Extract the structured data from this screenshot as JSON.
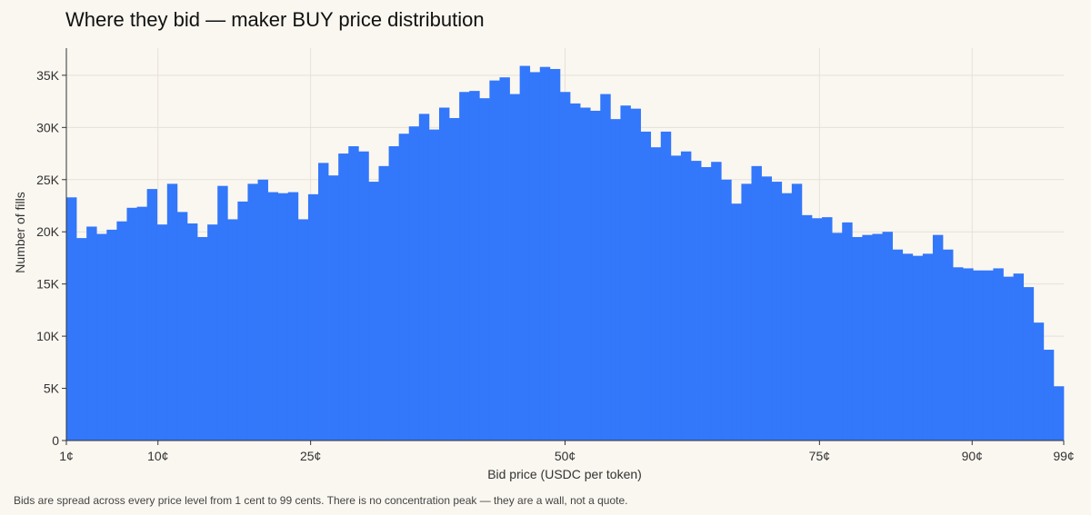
{
  "title": "Where they bid — maker BUY price distribution",
  "footnote": "Bids are spread across every price level from 1 cent to 99 cents. There is no concentration peak — they are a wall, not a quote.",
  "colors": {
    "bar": "#3377fa",
    "background": "#faf7f0",
    "grid": "#e6e1d8",
    "axis": "#333333"
  },
  "chart_data": {
    "type": "bar",
    "title": "Where they bid — maker BUY price distribution",
    "xlabel": "Bid price (USDC per token)",
    "ylabel": "Number of fills",
    "xlim": [
      1,
      99
    ],
    "ylim": [
      0,
      37600
    ],
    "grid": true,
    "legend": "none",
    "x_ticks": [
      {
        "value": 1,
        "label": "1¢"
      },
      {
        "value": 10,
        "label": "10¢"
      },
      {
        "value": 25,
        "label": "25¢"
      },
      {
        "value": 50,
        "label": "50¢"
      },
      {
        "value": 75,
        "label": "75¢"
      },
      {
        "value": 90,
        "label": "90¢"
      },
      {
        "value": 99,
        "label": "99¢"
      }
    ],
    "y_ticks": [
      {
        "value": 0,
        "label": "0"
      },
      {
        "value": 5000,
        "label": "5K"
      },
      {
        "value": 10000,
        "label": "10K"
      },
      {
        "value": 15000,
        "label": "15K"
      },
      {
        "value": 20000,
        "label": "20K"
      },
      {
        "value": 25000,
        "label": "25K"
      },
      {
        "value": 30000,
        "label": "30K"
      },
      {
        "value": 35000,
        "label": "35K"
      }
    ],
    "bin_width": 1,
    "bin_start": 1,
    "values": [
      23300,
      19400,
      20500,
      19800,
      20200,
      21000,
      22300,
      22400,
      24100,
      20700,
      24600,
      21900,
      20800,
      19500,
      20700,
      24400,
      21200,
      22900,
      24600,
      25000,
      23800,
      23700,
      23800,
      21200,
      23600,
      26600,
      25400,
      27500,
      28200,
      27700,
      24800,
      26300,
      28200,
      29400,
      30100,
      31300,
      29800,
      31900,
      30900,
      33400,
      33500,
      32800,
      34500,
      34800,
      33200,
      35900,
      35300,
      35800,
      35600,
      33400,
      32300,
      31900,
      31600,
      33200,
      30800,
      32100,
      31800,
      29600,
      28100,
      29600,
      27300,
      27700,
      26800,
      26200,
      26700,
      25000,
      22700,
      24600,
      26300,
      25300,
      24800,
      23700,
      24600,
      21600,
      21300,
      21400,
      19900,
      20900,
      19500,
      19700,
      19800,
      20000,
      18300,
      17900,
      17700,
      17900,
      19700,
      18300,
      16600,
      16500,
      16300,
      16300,
      16500,
      15700,
      16000,
      14700,
      11300,
      8700,
      5200
    ]
  }
}
